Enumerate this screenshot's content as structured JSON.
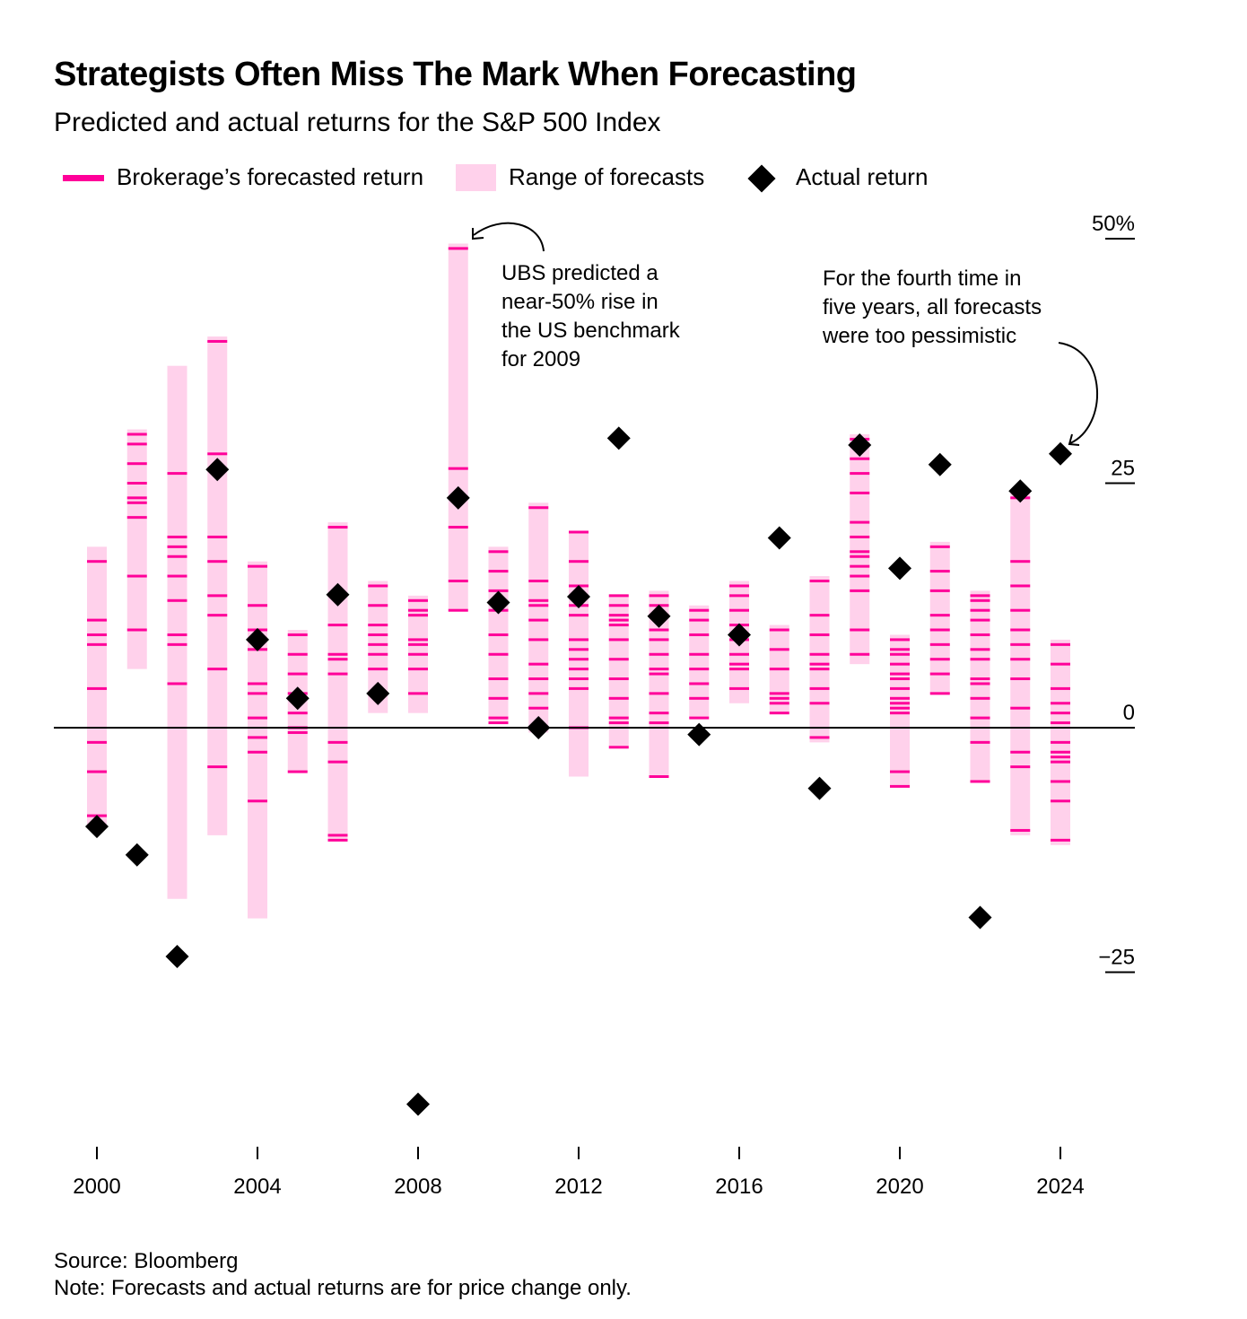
{
  "header": {
    "title": "Strategists Often Miss The Mark When Forecasting",
    "subtitle": "Predicted and actual returns for the S&P 500 Index"
  },
  "legend": {
    "forecast_label": "Brokerage’s forecasted return",
    "range_label": "Range of forecasts",
    "actual_label": "Actual return"
  },
  "colors": {
    "forecast": "#ff0099",
    "range": "#ffd1eb",
    "actual": "#000000",
    "axis": "#000000"
  },
  "annotations": [
    {
      "text": [
        "UBS predicted a",
        "near-50% rise in",
        "the US benchmark",
        "for 2009"
      ],
      "year": 2009
    },
    {
      "text": [
        "For the fourth time in",
        "five years, all forecasts",
        "were too pessimistic"
      ],
      "year": 2024
    }
  ],
  "footer": {
    "source": "Source: Bloomberg",
    "note": "Note: Forecasts and actual returns are for price change only."
  },
  "chart_data": {
    "type": "range-dot",
    "title": "Strategists Often Miss The Mark When Forecasting",
    "subtitle": "Predicted and actual returns for the S&P 500 Index",
    "ylim": [
      -42,
      52
    ],
    "y_ticks": [
      {
        "value": 50,
        "label": "50%"
      },
      {
        "value": 25,
        "label": "25"
      },
      {
        "value": 0,
        "label": "0"
      },
      {
        "value": -25,
        "label": "−25"
      }
    ],
    "x_ticks": [
      2000,
      2004,
      2008,
      2012,
      2016,
      2020,
      2024
    ],
    "years": [
      {
        "year": 2000,
        "range": [
          -10,
          18.5
        ],
        "forecasts": [
          17,
          11,
          9.5,
          8.5,
          4,
          -1.5,
          -4.5,
          -9
        ],
        "actual": -10.1
      },
      {
        "year": 2001,
        "range": [
          6,
          30.5
        ],
        "forecasts": [
          30,
          29,
          27,
          25,
          23.5,
          23,
          21.5,
          15.5,
          10
        ],
        "actual": -13
      },
      {
        "year": 2002,
        "range": [
          -17.5,
          37
        ],
        "forecasts": [
          26,
          19.5,
          18.5,
          17.5,
          15.5,
          13,
          9.5,
          8.5,
          4.5
        ],
        "actual": -23.4
      },
      {
        "year": 2003,
        "range": [
          -11,
          40
        ],
        "forecasts": [
          39.5,
          28,
          19.5,
          17,
          13.5,
          11.5,
          6,
          -4
        ],
        "actual": 26.4
      },
      {
        "year": 2004,
        "range": [
          -19.5,
          17
        ],
        "forecasts": [
          16.5,
          12.5,
          10,
          8,
          4.5,
          3.5,
          1,
          -1,
          -2.5,
          -7.5
        ],
        "actual": 9
      },
      {
        "year": 2005,
        "range": [
          -4.5,
          10
        ],
        "forecasts": [
          9.5,
          7.5,
          5.5,
          3.5,
          1.5,
          0,
          -0.5,
          -4.5
        ],
        "actual": 3
      },
      {
        "year": 2006,
        "range": [
          -11.5,
          21
        ],
        "forecasts": [
          20.5,
          10.5,
          7.5,
          7,
          5.5,
          -1.5,
          -3.5,
          -11,
          -11.5
        ],
        "actual": 13.6
      },
      {
        "year": 2007,
        "range": [
          1.5,
          15
        ],
        "forecasts": [
          14.5,
          12.5,
          10.5,
          9.5,
          8.5,
          7.5,
          6,
          3.5
        ],
        "actual": 3.5
      },
      {
        "year": 2008,
        "range": [
          1.5,
          13.5
        ],
        "forecasts": [
          13,
          12,
          11.5,
          9,
          8.5,
          7.5,
          6,
          3.5
        ],
        "actual": -38.5
      },
      {
        "year": 2009,
        "range": [
          12,
          49.5
        ],
        "forecasts": [
          49,
          26.5,
          20.5,
          15,
          12
        ],
        "actual": 23.5
      },
      {
        "year": 2010,
        "range": [
          0.5,
          18.5
        ],
        "forecasts": [
          18,
          16,
          14,
          12,
          9.5,
          7.5,
          5,
          3,
          1,
          0.5
        ],
        "actual": 12.8
      },
      {
        "year": 2011,
        "range": [
          -0.5,
          23
        ],
        "forecasts": [
          22.5,
          15,
          13,
          12.5,
          11,
          9,
          6.5,
          5,
          3.5,
          2,
          0
        ],
        "actual": 0
      },
      {
        "year": 2012,
        "range": [
          -5,
          20
        ],
        "forecasts": [
          20,
          17,
          14.5,
          12.5,
          11.5,
          9,
          8,
          7,
          6,
          5,
          4,
          0
        ],
        "actual": 13.4
      },
      {
        "year": 2013,
        "range": [
          -2,
          13.5
        ],
        "forecasts": [
          13.5,
          12.5,
          11.5,
          11,
          10.5,
          9,
          7,
          5,
          3,
          1,
          0.5,
          -2
        ],
        "actual": 29.6
      },
      {
        "year": 2014,
        "range": [
          -5,
          14
        ],
        "forecasts": [
          13.5,
          12.5,
          11.5,
          10,
          9,
          7.5,
          6,
          5.5,
          3.5,
          1.5,
          0.5,
          -5
        ],
        "actual": 11.4
      },
      {
        "year": 2015,
        "range": [
          1,
          12.5
        ],
        "forecasts": [
          12,
          11,
          9.5,
          7.5,
          6,
          4.5,
          3,
          1
        ],
        "actual": -0.7
      },
      {
        "year": 2016,
        "range": [
          2.5,
          15
        ],
        "forecasts": [
          14.5,
          13.5,
          12,
          10.5,
          9,
          7.5,
          6.5,
          6,
          4
        ],
        "actual": 9.5
      },
      {
        "year": 2017,
        "range": [
          1.5,
          10.5
        ],
        "forecasts": [
          10,
          8,
          6,
          3.5,
          3,
          2.5,
          1.5
        ],
        "actual": 19.4
      },
      {
        "year": 2018,
        "range": [
          -1.5,
          15.5
        ],
        "forecasts": [
          15,
          11.5,
          9.5,
          7.5,
          6.5,
          6,
          4,
          2.5,
          -1
        ],
        "actual": -6.2
      },
      {
        "year": 2019,
        "range": [
          6.5,
          30
        ],
        "forecasts": [
          29.5,
          29,
          27.5,
          26,
          24,
          21,
          19.5,
          18,
          17.5,
          16.5,
          15.5,
          14,
          10,
          7.5
        ],
        "actual": 28.9
      },
      {
        "year": 2020,
        "range": [
          -6,
          9.5
        ],
        "forecasts": [
          9,
          8,
          7.5,
          6.5,
          5.5,
          5,
          4,
          3,
          2.5,
          2,
          1.5,
          -4.5,
          -6
        ],
        "actual": 16.3
      },
      {
        "year": 2021,
        "range": [
          3.5,
          19
        ],
        "forecasts": [
          18.5,
          16,
          14,
          11.5,
          10,
          8.5,
          7,
          5.5,
          3.5
        ],
        "actual": 26.9
      },
      {
        "year": 2022,
        "range": [
          -5.5,
          14
        ],
        "forecasts": [
          13.5,
          13,
          12,
          11,
          9.5,
          8,
          7,
          5,
          4.5,
          3,
          1,
          -1.5,
          -5.5
        ],
        "actual": -19.4
      },
      {
        "year": 2023,
        "range": [
          -11,
          24
        ],
        "forecasts": [
          23.5,
          17,
          14.5,
          12,
          10,
          8.5,
          7,
          5,
          2,
          -2.5,
          -4,
          -10.5
        ],
        "actual": 24.2
      },
      {
        "year": 2024,
        "range": [
          -12,
          9
        ],
        "forecasts": [
          8.5,
          6.5,
          4,
          2.5,
          1.5,
          0.5,
          -1.5,
          -2.5,
          -3,
          -3.5,
          -5.5,
          -7.5,
          -11.5
        ],
        "actual": 28
      }
    ]
  }
}
